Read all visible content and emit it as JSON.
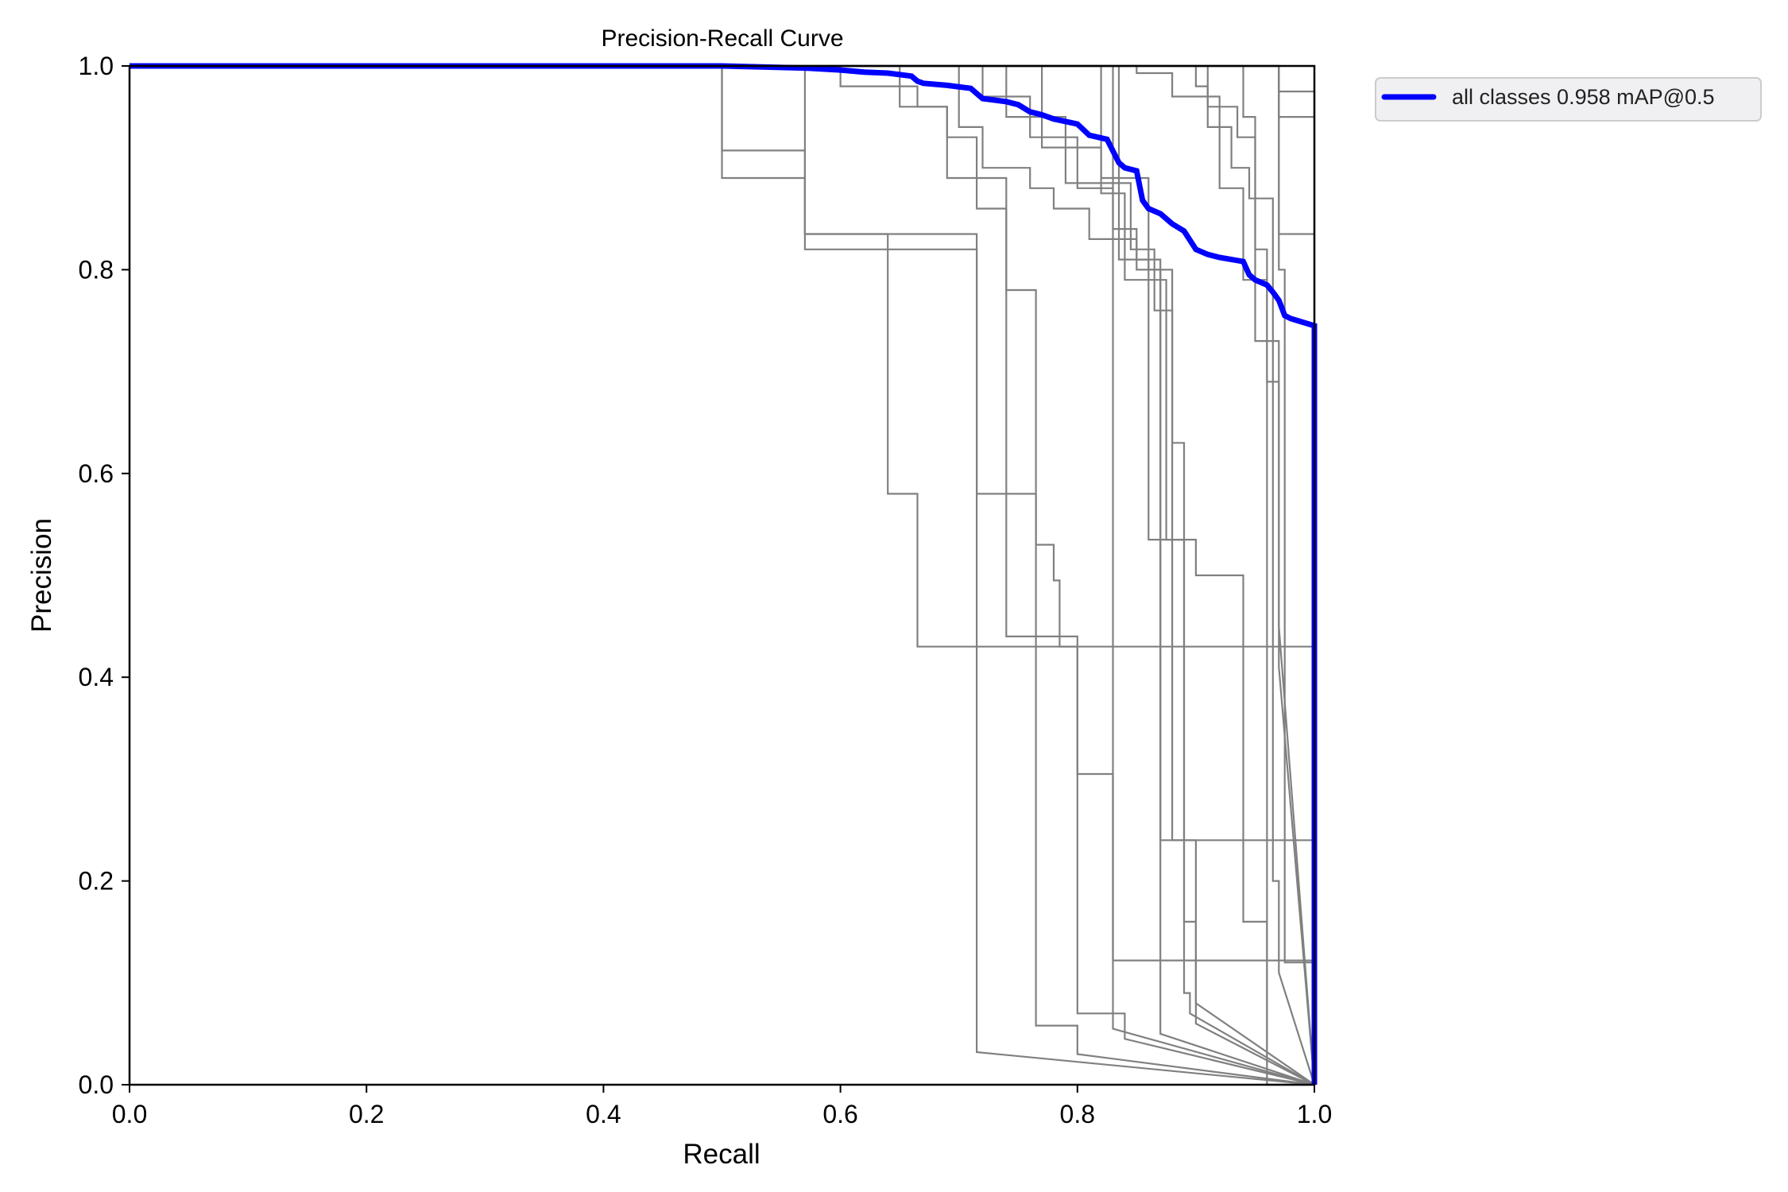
{
  "chart_data": {
    "type": "line",
    "title": "Precision-Recall Curve",
    "xlabel": "Recall",
    "ylabel": "Precision",
    "xlim": [
      0.0,
      1.0
    ],
    "ylim": [
      0.0,
      1.0
    ],
    "xticks": [
      "0.0",
      "0.2",
      "0.4",
      "0.6",
      "0.8",
      "1.0"
    ],
    "yticks": [
      "0.0",
      "0.2",
      "0.4",
      "0.6",
      "0.8",
      "1.0"
    ],
    "grid": false,
    "legend": {
      "placement": "outside-upper-right",
      "entries": [
        {
          "label": "all classes 0.958 mAP@0.5",
          "color": "#0000ff"
        }
      ]
    },
    "class_color": "#808080",
    "mean_color": "#0000ff",
    "series": [
      {
        "name": "all classes 0.958 mAP@0.5",
        "role": "mean",
        "x": [
          0.0,
          0.5,
          0.57,
          0.6,
          0.62,
          0.64,
          0.66,
          0.665,
          0.67,
          0.69,
          0.71,
          0.72,
          0.74,
          0.75,
          0.76,
          0.77,
          0.78,
          0.8,
          0.81,
          0.825,
          0.835,
          0.84,
          0.85,
          0.855,
          0.86,
          0.87,
          0.88,
          0.89,
          0.9,
          0.91,
          0.92,
          0.94,
          0.945,
          0.95,
          0.96,
          0.965,
          0.97,
          0.975,
          0.98,
          1.0,
          1.0
        ],
        "y": [
          1.0,
          1.0,
          0.998,
          0.996,
          0.994,
          0.993,
          0.99,
          0.985,
          0.983,
          0.981,
          0.978,
          0.968,
          0.965,
          0.962,
          0.955,
          0.952,
          0.948,
          0.943,
          0.932,
          0.928,
          0.905,
          0.9,
          0.897,
          0.868,
          0.86,
          0.855,
          0.845,
          0.838,
          0.82,
          0.815,
          0.812,
          0.808,
          0.795,
          0.79,
          0.785,
          0.778,
          0.77,
          0.755,
          0.752,
          0.745,
          0.0
        ]
      },
      {
        "role": "class",
        "x": [
          0.0,
          0.5,
          0.5,
          0.57,
          0.57,
          0.715,
          0.715,
          1.0
        ],
        "y": [
          1.0,
          1.0,
          0.89,
          0.89,
          0.82,
          0.82,
          0.032,
          0.0
        ]
      },
      {
        "role": "class",
        "x": [
          0.0,
          0.5,
          0.5,
          0.57,
          0.57,
          0.64,
          0.64,
          0.665,
          0.665,
          1.0
        ],
        "y": [
          1.0,
          1.0,
          0.917,
          0.917,
          0.835,
          0.835,
          0.58,
          0.58,
          0.43,
          0.43
        ]
      },
      {
        "role": "class",
        "x": [
          0.0,
          0.57,
          0.57,
          0.715,
          0.715,
          0.765,
          0.765,
          0.8,
          0.8,
          1.0
        ],
        "y": [
          1.0,
          1.0,
          0.835,
          0.835,
          0.58,
          0.58,
          0.058,
          0.058,
          0.03,
          0.0
        ]
      },
      {
        "role": "class",
        "x": [
          0.0,
          0.6,
          0.6,
          0.665,
          0.665,
          0.69,
          0.69,
          0.74,
          0.74,
          0.765,
          0.765,
          0.78,
          0.78,
          0.785,
          0.785,
          0.8,
          0.8,
          0.83,
          0.83,
          1.0
        ],
        "y": [
          1.0,
          1.0,
          0.98,
          0.98,
          0.96,
          0.96,
          0.89,
          0.89,
          0.78,
          0.78,
          0.53,
          0.53,
          0.495,
          0.495,
          0.43,
          0.43,
          0.305,
          0.305,
          0.055,
          0.0
        ]
      },
      {
        "role": "class",
        "x": [
          0.0,
          0.65,
          0.65,
          0.69,
          0.69,
          0.715,
          0.715,
          0.74,
          0.74,
          0.8,
          0.8,
          0.84,
          0.84,
          1.0
        ],
        "y": [
          1.0,
          1.0,
          0.96,
          0.96,
          0.93,
          0.93,
          0.86,
          0.86,
          0.44,
          0.44,
          0.07,
          0.07,
          0.045,
          0.0
        ]
      },
      {
        "role": "class",
        "x": [
          0.0,
          0.7,
          0.7,
          0.72,
          0.72,
          0.76,
          0.76,
          0.78,
          0.78,
          0.81,
          0.81,
          0.85,
          0.85,
          0.87,
          0.87,
          1.0
        ],
        "y": [
          1.0,
          1.0,
          0.94,
          0.94,
          0.9,
          0.9,
          0.88,
          0.88,
          0.86,
          0.86,
          0.83,
          0.83,
          0.81,
          0.81,
          0.24,
          0.24
        ]
      },
      {
        "role": "class",
        "x": [
          0.0,
          0.72,
          0.72,
          0.76,
          0.76,
          0.8,
          0.8,
          0.83,
          0.83,
          0.85,
          0.85,
          0.87,
          0.87,
          1.0
        ],
        "y": [
          1.0,
          1.0,
          0.97,
          0.97,
          0.93,
          0.93,
          0.88,
          0.88,
          0.84,
          0.84,
          0.8,
          0.8,
          0.05,
          0.0
        ]
      },
      {
        "role": "class",
        "x": [
          0.0,
          0.74,
          0.74,
          0.79,
          0.79,
          0.845,
          0.845,
          0.865,
          0.865,
          0.88,
          0.88,
          0.89,
          0.89,
          0.9,
          0.9,
          1.0
        ],
        "y": [
          1.0,
          1.0,
          0.95,
          0.95,
          0.885,
          0.885,
          0.82,
          0.82,
          0.76,
          0.76,
          0.63,
          0.63,
          0.16,
          0.16,
          0.06,
          0.0
        ]
      },
      {
        "role": "class",
        "x": [
          0.0,
          0.77,
          0.77,
          0.82,
          0.82,
          0.86,
          0.86,
          0.88,
          0.88,
          0.9,
          0.9,
          1.0
        ],
        "y": [
          1.0,
          1.0,
          0.92,
          0.92,
          0.89,
          0.89,
          0.8,
          0.8,
          0.24,
          0.24,
          0.08,
          0.0
        ]
      },
      {
        "role": "class",
        "x": [
          0.0,
          0.82,
          0.82,
          0.84,
          0.84,
          0.875,
          0.875,
          0.89,
          0.89,
          0.895,
          0.895,
          1.0
        ],
        "y": [
          1.0,
          1.0,
          0.875,
          0.875,
          0.79,
          0.79,
          0.535,
          0.535,
          0.09,
          0.09,
          0.07,
          0.0
        ]
      },
      {
        "role": "class",
        "x": [
          0.0,
          0.835,
          0.835,
          0.86,
          0.86,
          0.9,
          0.9,
          0.94,
          0.94,
          0.96,
          0.96,
          1.0
        ],
        "y": [
          1.0,
          1.0,
          0.81,
          0.81,
          0.535,
          0.535,
          0.5,
          0.5,
          0.16,
          0.16,
          0.0,
          0.0
        ]
      },
      {
        "role": "class",
        "x": [
          0.0,
          0.85,
          0.85,
          0.88,
          0.88,
          0.92,
          0.92,
          0.94,
          0.94,
          0.96,
          0.96,
          1.0
        ],
        "y": [
          1.0,
          1.0,
          0.993,
          0.993,
          0.97,
          0.97,
          0.88,
          0.88,
          0.79,
          0.79,
          0.0,
          0.0
        ]
      },
      {
        "role": "class",
        "x": [
          0.0,
          0.9,
          0.9,
          0.91,
          0.91,
          0.93,
          0.93,
          0.945,
          0.945,
          0.965,
          0.965,
          0.97,
          0.97,
          1.0
        ],
        "y": [
          1.0,
          1.0,
          0.98,
          0.98,
          0.94,
          0.94,
          0.9,
          0.9,
          0.87,
          0.87,
          0.2,
          0.2,
          0.11,
          0.0
        ]
      },
      {
        "role": "class",
        "x": [
          0.0,
          0.91,
          0.91,
          0.935,
          0.935,
          0.95,
          0.95,
          0.96,
          0.96,
          0.97,
          0.97,
          1.0
        ],
        "y": [
          1.0,
          1.0,
          0.96,
          0.96,
          0.93,
          0.93,
          0.82,
          0.82,
          0.69,
          0.69,
          0.41,
          0.0
        ]
      },
      {
        "role": "class",
        "x": [
          0.0,
          0.94,
          0.94,
          0.95,
          0.95,
          0.97,
          0.97,
          1.0
        ],
        "y": [
          1.0,
          1.0,
          0.95,
          0.95,
          0.73,
          0.73,
          0.45,
          0.0
        ]
      },
      {
        "role": "class",
        "x": [
          0.0,
          0.97,
          0.97,
          1.0
        ],
        "y": [
          1.0,
          1.0,
          0.95,
          0.95
        ]
      },
      {
        "role": "class",
        "x": [
          0.0,
          0.97,
          0.97,
          1.0
        ],
        "y": [
          1.0,
          1.0,
          0.835,
          0.835
        ]
      },
      {
        "role": "class",
        "x": [
          0.0,
          0.97,
          0.97,
          0.975,
          0.975,
          1.0
        ],
        "y": [
          1.0,
          1.0,
          0.8,
          0.8,
          0.12,
          0.12
        ]
      },
      {
        "role": "class",
        "x": [
          0.0,
          0.97,
          0.97,
          1.0,
          1.0
        ],
        "y": [
          1.0,
          1.0,
          0.975,
          0.975,
          0.5
        ]
      },
      {
        "role": "class",
        "x": [
          0.0,
          0.83,
          0.83,
          1.0
        ],
        "y": [
          1.0,
          1.0,
          0.122,
          0.122
        ]
      }
    ]
  }
}
